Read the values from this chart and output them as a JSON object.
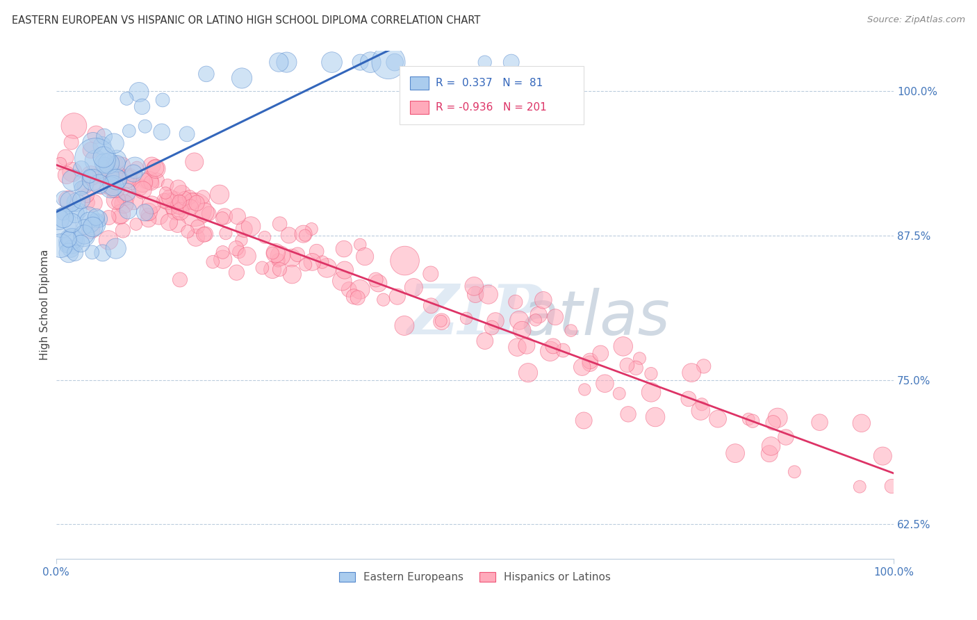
{
  "title": "EASTERN EUROPEAN VS HISPANIC OR LATINO HIGH SCHOOL DIPLOMA CORRELATION CHART",
  "source": "Source: ZipAtlas.com",
  "ylabel": "High School Diploma",
  "y_ticks": [
    0.625,
    0.75,
    0.875,
    1.0
  ],
  "y_ticks_labels": [
    "62.5%",
    "75.0%",
    "87.5%",
    "100.0%"
  ],
  "legend_r_blue": "R =  0.337",
  "legend_n_blue": "N =  81",
  "legend_r_red": "R = -0.936",
  "legend_n_red": "N = 201",
  "blue_fill": "#AACCEE",
  "blue_edge": "#5588CC",
  "red_fill": "#FFAABB",
  "red_edge": "#EE5577",
  "blue_line": "#3366BB",
  "red_line": "#DD3366",
  "watermark_zip": "ZIP",
  "watermark_atlas": "atlas",
  "watermark_color_zip": "#CCDDEE",
  "watermark_color_atlas": "#AABBCC",
  "background_color": "#FFFFFF",
  "title_fontsize": 10.5,
  "blue_n": 81,
  "red_n": 201,
  "xmin": 0.0,
  "xmax": 1.0,
  "ymin": 0.595,
  "ymax": 1.035
}
